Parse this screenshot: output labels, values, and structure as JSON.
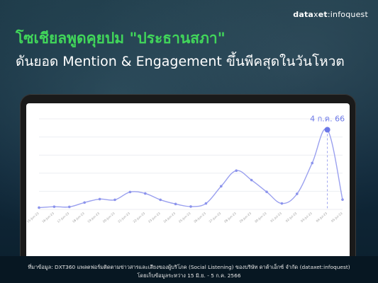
{
  "brand": {
    "bold": "data",
    "sep": "x",
    "bold2": "et",
    "rest": ":infoquest"
  },
  "headline": {
    "line1": "โซเชียลพูดคุยปม \"ประธานสภา\"",
    "line2": "ดันยอด Mention & Engagement ขึ้นพีคสุดในวันโหวต"
  },
  "colors": {
    "accent_green": "#41d65a",
    "line": "#9aa0ef",
    "point": "#8b93ec",
    "peak": "#6c78e8",
    "peak_label": "#6c78e8"
  },
  "chart_data": {
    "type": "line",
    "title": "",
    "xlabel": "",
    "ylabel": "",
    "x": [
      "15-Jun-23",
      "16-Jun-23",
      "17-Jun-23",
      "18-Jun-23",
      "19-Jun-23",
      "20-Jun-23",
      "21-Jun-23",
      "22-Jun-23",
      "23-Jun-23",
      "24-Jun-23",
      "25-Jun-23",
      "26-Jun-23",
      "27-Jun-23",
      "28-Jun-23",
      "29-Jun-23",
      "30-Jun-23",
      "01-Jul-23",
      "02-Jul-23",
      "03-Jul-23",
      "04-Jul-23",
      "05-Jul-23"
    ],
    "series": [
      {
        "values": [
          1.0,
          1.5,
          1.4,
          3.8,
          5.7,
          5.3,
          9.6,
          8.8,
          5.3,
          3.0,
          1.6,
          3.3,
          12.8,
          21.4,
          16.2,
          9.7,
          3.3,
          8.6,
          25.6,
          44.0,
          5.4
        ]
      }
    ],
    "ylim": [
      0,
      50
    ],
    "grid": true,
    "peak_index": 19,
    "peak_label": "4 ก.ค. 66"
  },
  "footer": {
    "line1": "ที่มาข้อมูล: DXT360 แพลตฟอร์มติดตามข่าวสารและเสียงของผู้บริโภค (Social Listening) ของบริษัท ดาต้าเอ็กซ์ จำกัด (dataxet:infoquest)",
    "line2": "โดยเก็บข้อมูลระหว่าง 15 มิ.ย. - 5 ก.ค. 2566"
  }
}
